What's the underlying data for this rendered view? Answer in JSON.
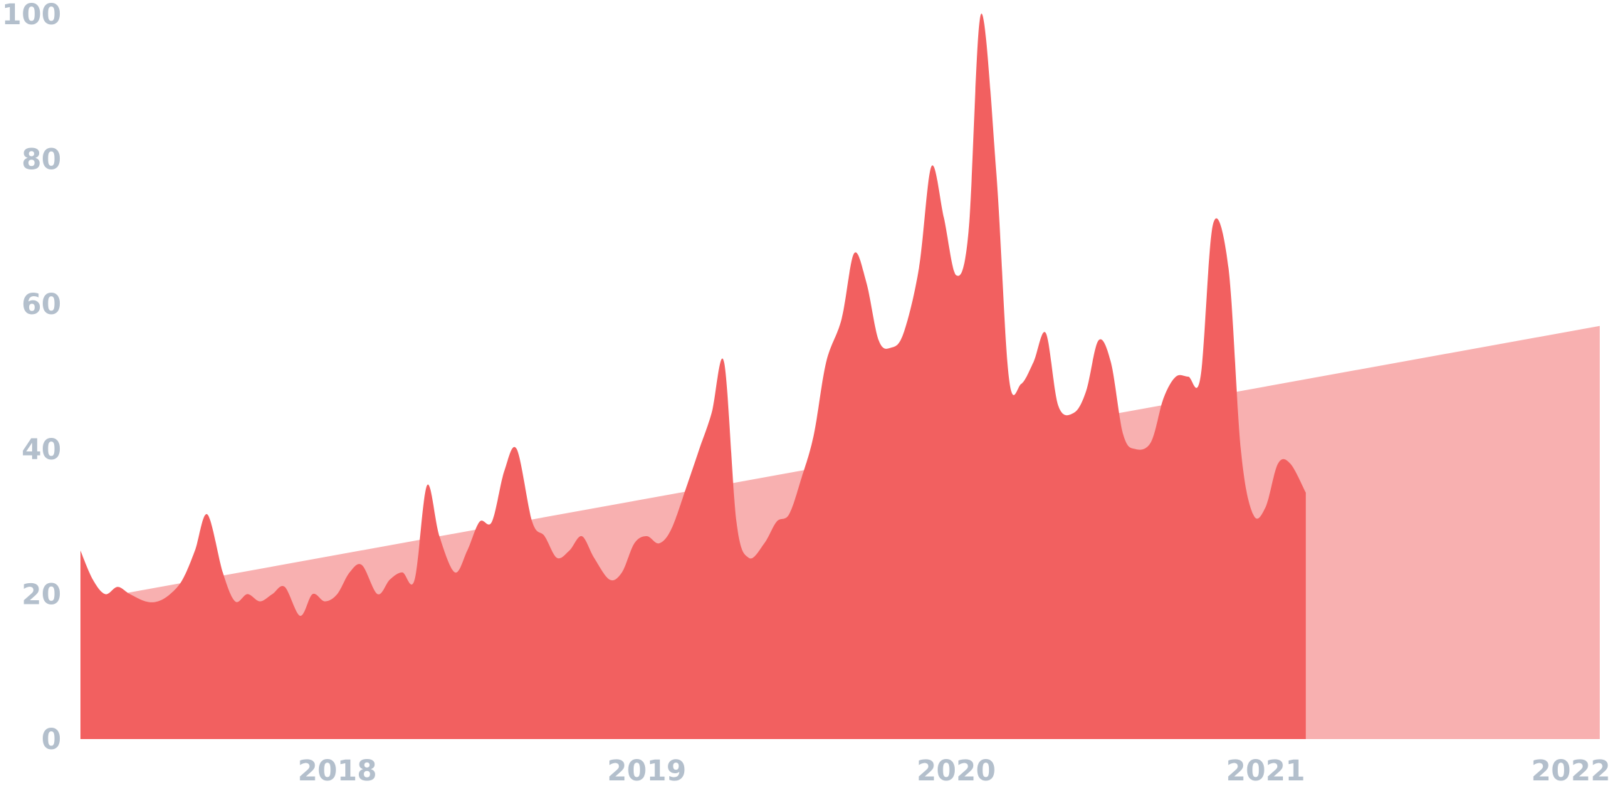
{
  "chart_data": {
    "type": "area",
    "title": "",
    "xlabel": "",
    "ylabel": "",
    "ylim": [
      0,
      100
    ],
    "xlim": [
      2017.17,
      2022.08
    ],
    "y_ticks": [
      "0",
      "20",
      "40",
      "60",
      "80",
      "100"
    ],
    "x_ticks": [
      "2018",
      "2019",
      "2020",
      "2021",
      "2022"
    ],
    "grid": false,
    "legend": "none",
    "colors": {
      "main": "#f26060",
      "trend": "#f8b0b0",
      "ticks": "#b3bfcc"
    },
    "series": [
      {
        "values": [
          [
            2017.17,
            26
          ],
          [
            2017.21,
            22
          ],
          [
            2017.25,
            20
          ],
          [
            2017.29,
            21
          ],
          [
            2017.33,
            20
          ],
          [
            2017.38,
            19
          ],
          [
            2017.42,
            19
          ],
          [
            2017.46,
            20
          ],
          [
            2017.5,
            22
          ],
          [
            2017.54,
            26
          ],
          [
            2017.58,
            31
          ],
          [
            2017.63,
            23
          ],
          [
            2017.67,
            19
          ],
          [
            2017.71,
            20
          ],
          [
            2017.75,
            19
          ],
          [
            2017.79,
            20
          ],
          [
            2017.83,
            21
          ],
          [
            2017.88,
            17
          ],
          [
            2017.92,
            20
          ],
          [
            2017.96,
            19
          ],
          [
            2018.0,
            20
          ],
          [
            2018.04,
            23
          ],
          [
            2018.08,
            24
          ],
          [
            2018.13,
            20
          ],
          [
            2018.17,
            22
          ],
          [
            2018.21,
            23
          ],
          [
            2018.25,
            22
          ],
          [
            2018.29,
            35
          ],
          [
            2018.33,
            28
          ],
          [
            2018.38,
            23
          ],
          [
            2018.42,
            26
          ],
          [
            2018.46,
            30
          ],
          [
            2018.5,
            30
          ],
          [
            2018.54,
            37
          ],
          [
            2018.58,
            40
          ],
          [
            2018.63,
            30
          ],
          [
            2018.67,
            28
          ],
          [
            2018.71,
            25
          ],
          [
            2018.75,
            26
          ],
          [
            2018.79,
            28
          ],
          [
            2018.83,
            25
          ],
          [
            2018.88,
            22
          ],
          [
            2018.92,
            23
          ],
          [
            2018.96,
            27
          ],
          [
            2019.0,
            28
          ],
          [
            2019.04,
            27
          ],
          [
            2019.08,
            29
          ],
          [
            2019.13,
            35
          ],
          [
            2019.17,
            40
          ],
          [
            2019.21,
            45
          ],
          [
            2019.25,
            52
          ],
          [
            2019.29,
            30
          ],
          [
            2019.33,
            25
          ],
          [
            2019.38,
            27
          ],
          [
            2019.42,
            30
          ],
          [
            2019.46,
            31
          ],
          [
            2019.5,
            36
          ],
          [
            2019.54,
            42
          ],
          [
            2019.58,
            52
          ],
          [
            2019.63,
            58
          ],
          [
            2019.67,
            67
          ],
          [
            2019.71,
            63
          ],
          [
            2019.75,
            55
          ],
          [
            2019.79,
            54
          ],
          [
            2019.83,
            56
          ],
          [
            2019.88,
            65
          ],
          [
            2019.92,
            79
          ],
          [
            2019.96,
            72
          ],
          [
            2020.0,
            64
          ],
          [
            2020.04,
            70
          ],
          [
            2020.08,
            100
          ],
          [
            2020.13,
            78
          ],
          [
            2020.17,
            50
          ],
          [
            2020.21,
            49
          ],
          [
            2020.25,
            52
          ],
          [
            2020.29,
            56
          ],
          [
            2020.33,
            46
          ],
          [
            2020.38,
            45
          ],
          [
            2020.42,
            48
          ],
          [
            2020.46,
            55
          ],
          [
            2020.5,
            52
          ],
          [
            2020.54,
            42
          ],
          [
            2020.58,
            40
          ],
          [
            2020.63,
            41
          ],
          [
            2020.67,
            47
          ],
          [
            2020.71,
            50
          ],
          [
            2020.75,
            50
          ],
          [
            2020.79,
            50
          ],
          [
            2020.83,
            71
          ],
          [
            2020.88,
            65
          ],
          [
            2020.92,
            40
          ],
          [
            2020.96,
            31
          ],
          [
            2021.0,
            32
          ],
          [
            2021.04,
            38
          ],
          [
            2021.08,
            38
          ],
          [
            2021.13,
            34
          ]
        ]
      },
      {
        "values": [
          [
            2017.17,
            19
          ],
          [
            2022.08,
            57
          ]
        ]
      }
    ]
  }
}
